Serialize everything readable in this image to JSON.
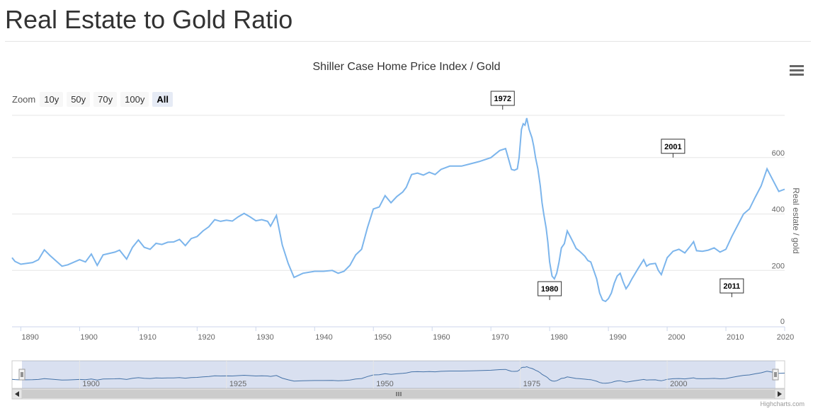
{
  "page": {
    "title": "Real Estate to Gold Ratio",
    "credits": "Highcharts.com"
  },
  "toolbar": {
    "zoom_label": "Zoom",
    "buttons": [
      "10y",
      "50y",
      "70y",
      "100y",
      "All"
    ],
    "active": "All"
  },
  "chart_data": {
    "type": "line",
    "title": "Shiller Case Home Price Index  /  Gold",
    "ylabel": "Real estate / gold",
    "xlabel": "",
    "xlim": [
      1888.5,
      2020
    ],
    "ylim": [
      0,
      750
    ],
    "x_ticks": [
      1890,
      1900,
      1910,
      1920,
      1930,
      1940,
      1950,
      1960,
      1970,
      1980,
      1990,
      2000,
      2010,
      2020
    ],
    "y_ticks": [
      0,
      200,
      400,
      600
    ],
    "grid": true,
    "legend": "none",
    "color": "#7cb5ec",
    "series": [
      {
        "values": [
          [
            1888.5,
            245
          ],
          [
            1889,
            232
          ],
          [
            1890,
            222
          ],
          [
            1892,
            228
          ],
          [
            1893,
            238
          ],
          [
            1894,
            273
          ],
          [
            1895,
            252
          ],
          [
            1897,
            215
          ],
          [
            1898,
            220
          ],
          [
            1900,
            238
          ],
          [
            1901,
            230
          ],
          [
            1902,
            258
          ],
          [
            1903,
            218
          ],
          [
            1904,
            255
          ],
          [
            1906,
            265
          ],
          [
            1906.8,
            272
          ],
          [
            1908,
            240
          ],
          [
            1909,
            282
          ],
          [
            1910,
            308
          ],
          [
            1911,
            282
          ],
          [
            1912,
            275
          ],
          [
            1913,
            296
          ],
          [
            1914,
            292
          ],
          [
            1915,
            300
          ],
          [
            1916,
            301
          ],
          [
            1917,
            310
          ],
          [
            1918,
            288
          ],
          [
            1919,
            313
          ],
          [
            1920,
            320
          ],
          [
            1921,
            340
          ],
          [
            1922,
            355
          ],
          [
            1923,
            380
          ],
          [
            1924,
            374
          ],
          [
            1925,
            378
          ],
          [
            1926,
            375
          ],
          [
            1927,
            390
          ],
          [
            1928,
            402
          ],
          [
            1929,
            390
          ],
          [
            1930,
            376
          ],
          [
            1931,
            380
          ],
          [
            1932,
            374
          ],
          [
            1932.5,
            357
          ],
          [
            1933.5,
            395
          ],
          [
            1934.5,
            290
          ],
          [
            1935.5,
            225
          ],
          [
            1936.5,
            175
          ],
          [
            1938,
            190
          ],
          [
            1940,
            197
          ],
          [
            1941.5,
            197
          ],
          [
            1943,
            200
          ],
          [
            1944,
            190
          ],
          [
            1945,
            197
          ],
          [
            1946,
            218
          ],
          [
            1947,
            255
          ],
          [
            1948,
            275
          ],
          [
            1949,
            352
          ],
          [
            1950,
            418
          ],
          [
            1951,
            425
          ],
          [
            1952,
            465
          ],
          [
            1953,
            440
          ],
          [
            1954,
            462
          ],
          [
            1955,
            478
          ],
          [
            1955.6,
            495
          ],
          [
            1956.5,
            540
          ],
          [
            1957.5,
            545
          ],
          [
            1958.5,
            538
          ],
          [
            1959.5,
            548
          ],
          [
            1960.5,
            540
          ],
          [
            1961.5,
            558
          ],
          [
            1963,
            570
          ],
          [
            1965,
            570
          ],
          [
            1966.5,
            578
          ],
          [
            1968,
            586
          ],
          [
            1970,
            600
          ],
          [
            1971.5,
            625
          ],
          [
            1972.5,
            632
          ],
          [
            1973,
            595
          ],
          [
            1973.5,
            558
          ],
          [
            1974,
            555
          ],
          [
            1974.5,
            560
          ],
          [
            1974.8,
            600
          ],
          [
            1975.2,
            700
          ],
          [
            1975.5,
            720
          ],
          [
            1975.8,
            715
          ],
          [
            1976.1,
            740
          ],
          [
            1976.5,
            700
          ],
          [
            1977,
            670
          ],
          [
            1977.3,
            640
          ],
          [
            1977.6,
            600
          ],
          [
            1978,
            560
          ],
          [
            1978.4,
            500
          ],
          [
            1978.7,
            440
          ],
          [
            1979,
            400
          ],
          [
            1979.4,
            350
          ],
          [
            1979.7,
            300
          ],
          [
            1980,
            230
          ],
          [
            1980.4,
            180
          ],
          [
            1980.8,
            170
          ],
          [
            1981.2,
            190
          ],
          [
            1981.6,
            230
          ],
          [
            1982,
            280
          ],
          [
            1982.5,
            295
          ],
          [
            1983,
            340
          ],
          [
            1983.5,
            320
          ],
          [
            1984,
            300
          ],
          [
            1984.5,
            278
          ],
          [
            1985,
            270
          ],
          [
            1985.5,
            260
          ],
          [
            1986,
            250
          ],
          [
            1986.5,
            235
          ],
          [
            1987,
            230
          ],
          [
            1987.5,
            200
          ],
          [
            1988,
            170
          ],
          [
            1988.5,
            120
          ],
          [
            1989,
            95
          ],
          [
            1989.5,
            90
          ],
          [
            1990,
            100
          ],
          [
            1990.5,
            120
          ],
          [
            1991,
            155
          ],
          [
            1991.5,
            180
          ],
          [
            1992,
            190
          ],
          [
            1992.5,
            160
          ],
          [
            1993,
            135
          ],
          [
            1993.5,
            150
          ],
          [
            1994,
            170
          ],
          [
            1995,
            205
          ],
          [
            1996,
            238
          ],
          [
            1996.5,
            215
          ],
          [
            1997,
            222
          ],
          [
            1998,
            225
          ],
          [
            1998.5,
            200
          ],
          [
            1999,
            185
          ],
          [
            1999.5,
            215
          ],
          [
            2000,
            245
          ],
          [
            2001,
            268
          ],
          [
            2002,
            275
          ],
          [
            2003,
            262
          ],
          [
            2004,
            288
          ],
          [
            2004.5,
            302
          ],
          [
            2005,
            270
          ],
          [
            2006,
            268
          ],
          [
            2007,
            272
          ],
          [
            2008,
            280
          ],
          [
            2009,
            265
          ],
          [
            2010,
            275
          ],
          [
            2011,
            320
          ],
          [
            2012,
            360
          ],
          [
            2013,
            400
          ],
          [
            2014,
            418
          ],
          [
            2015,
            460
          ],
          [
            2016,
            500
          ],
          [
            2017,
            560
          ],
          [
            2018,
            520
          ],
          [
            2019,
            480
          ],
          [
            2020,
            488
          ]
        ]
      }
    ],
    "annotations": [
      {
        "label": "1972",
        "x": 1972,
        "y": 745
      },
      {
        "label": "1980",
        "x": 1980,
        "y": 90
      },
      {
        "label": "2001",
        "x": 2001,
        "y": 575
      },
      {
        "label": "2011",
        "x": 2011,
        "y": 100
      }
    ],
    "navigator": {
      "x_ticks": [
        1900,
        1925,
        1950,
        1975,
        2000
      ]
    }
  }
}
